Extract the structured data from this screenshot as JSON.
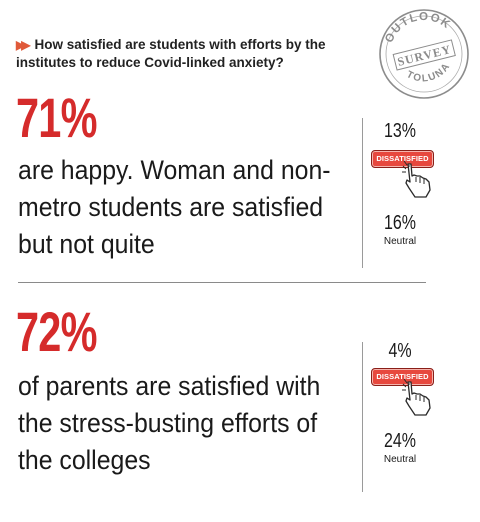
{
  "question": "How satisfied are students with efforts by the institutes to reduce Covid-linked anxiety?",
  "stamp": {
    "top": "OUTLOOK",
    "middle": "SURVEY",
    "bottom": "TOLUNA"
  },
  "students": {
    "headline_pct": "71%",
    "description": "are happy. Woman and non-metro students are satisfied but not quite",
    "dissatisfied_pct": "13%",
    "dissatisfied_label": "DISSATISFIED",
    "neutral_pct": "16%",
    "neutral_label": "Neutral"
  },
  "parents": {
    "headline_pct": "72%",
    "description": "of parents are satisfied with the stress-busting efforts of the colleges",
    "dissatisfied_pct": "4%",
    "dissatisfied_label": "DISSATISFIED",
    "neutral_pct": "24%",
    "neutral_label": "Neutral"
  },
  "colors": {
    "accent_red": "#d52b2b",
    "arrow_orange": "#e05a3a",
    "badge_red": "#e7483e"
  },
  "icons": [
    "double-chevron-icon",
    "survey-stamp-icon",
    "pointing-hand-icon"
  ]
}
